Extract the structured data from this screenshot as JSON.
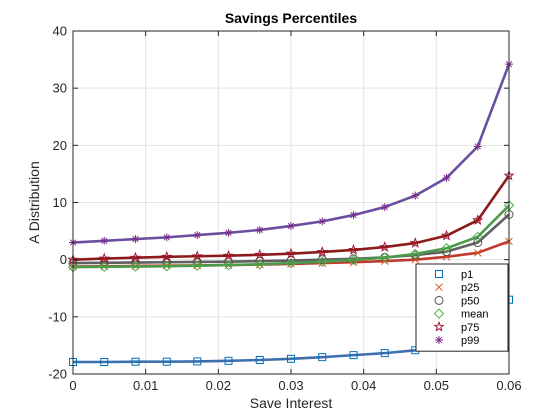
{
  "chart_data": {
    "type": "line",
    "title": "Savings Percentiles",
    "xlabel": "Save Interest",
    "ylabel": "A Distribution",
    "xlim": [
      0,
      0.06
    ],
    "ylim": [
      -20,
      40
    ],
    "x_ticks": [
      0,
      0.01,
      0.02,
      0.03,
      0.04,
      0.05,
      0.06
    ],
    "x_tick_labels": [
      "0",
      "0.01",
      "0.02",
      "0.03",
      "0.04",
      "0.05",
      "0.06"
    ],
    "y_ticks": [
      -20,
      -10,
      0,
      10,
      20,
      30,
      40
    ],
    "y_tick_labels": [
      "-20",
      "-10",
      "0",
      "10",
      "20",
      "30",
      "40"
    ],
    "grid": true,
    "legend_position": "bottom-right",
    "x": [
      0,
      0.0043,
      0.0086,
      0.0129,
      0.0171,
      0.0214,
      0.0257,
      0.03,
      0.0343,
      0.0386,
      0.0429,
      0.0471,
      0.0514,
      0.0557,
      0.06
    ],
    "series": [
      {
        "name": "p1",
        "color": "#0072BD",
        "marker": "square",
        "line_color": "#3d6fb0",
        "values": [
          -17.9,
          -17.9,
          -17.85,
          -17.85,
          -17.8,
          -17.7,
          -17.55,
          -17.35,
          -17.05,
          -16.7,
          -16.35,
          -15.85,
          -14.95,
          -12.9,
          -7.0
        ]
      },
      {
        "name": "p25",
        "color": "#D95319",
        "marker": "x",
        "line_color": "#c0392b",
        "values": [
          -1.2,
          -1.15,
          -1.1,
          -1.05,
          -1.0,
          -0.95,
          -0.85,
          -0.75,
          -0.6,
          -0.45,
          -0.25,
          0.0,
          0.5,
          1.2,
          3.2
        ]
      },
      {
        "name": "p50",
        "color": "#555555",
        "marker": "circle",
        "line_color": "#606060",
        "values": [
          -0.6,
          -0.55,
          -0.5,
          -0.45,
          -0.4,
          -0.35,
          -0.25,
          -0.15,
          0.0,
          0.15,
          0.4,
          0.8,
          1.4,
          3.0,
          7.9
        ]
      },
      {
        "name": "mean",
        "color": "#4DAF4A",
        "marker": "diamond",
        "line_color": "#4a9a4a",
        "values": [
          -1.3,
          -1.25,
          -1.2,
          -1.15,
          -1.05,
          -0.95,
          -0.8,
          -0.6,
          -0.35,
          -0.05,
          0.35,
          1.0,
          2.0,
          4.0,
          9.5
        ]
      },
      {
        "name": "p75",
        "color": "#A2142F",
        "marker": "star",
        "line_color": "#8b1a1a",
        "values": [
          0.0,
          0.2,
          0.35,
          0.5,
          0.6,
          0.7,
          0.85,
          1.05,
          1.35,
          1.7,
          2.2,
          2.9,
          4.2,
          6.9,
          14.7
        ]
      },
      {
        "name": "p99",
        "color": "#7E2F8E",
        "marker": "asterisk",
        "line_color": "#6a4fa0",
        "values": [
          3.0,
          3.3,
          3.6,
          3.9,
          4.3,
          4.7,
          5.2,
          5.9,
          6.7,
          7.8,
          9.2,
          11.2,
          14.3,
          19.8,
          34.2
        ]
      }
    ]
  }
}
